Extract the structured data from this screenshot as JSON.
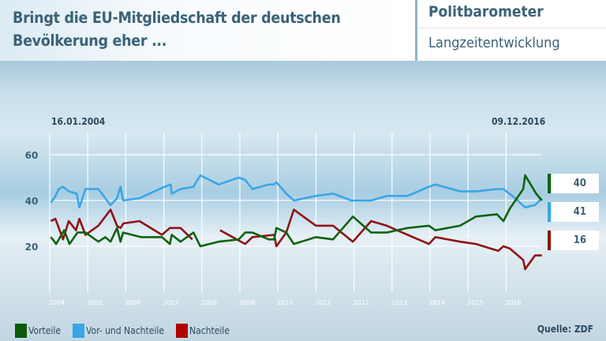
{
  "header": {
    "title_line1": "Bringt die EU-Mitgliedschaft der deutschen",
    "title_line2": "Bevölkerung eher ...",
    "brand": "Politbarometer",
    "subtitle": "Langzeitentwicklung"
  },
  "source": "Quelle: ZDF",
  "chart_data": {
    "type": "line",
    "start_label": "16.01.2004",
    "end_label": "09.12.2016",
    "xlim": [
      2004,
      2017
    ],
    "ylim": [
      0,
      70
    ],
    "x_ticks": [
      "2004",
      "2005",
      "2006",
      "2007",
      "2008",
      "2009",
      "2010",
      "2011",
      "2012",
      "2013",
      "2014",
      "2015",
      "2016"
    ],
    "y_ticks": [
      "20",
      "40",
      "60"
    ],
    "grid": true,
    "legend": "bottom-left",
    "series": [
      {
        "name": "Vorteile",
        "color": "#0f6310",
        "last_value": "40",
        "points": [
          [
            2004.03,
            24
          ],
          [
            2004.1,
            22.6
          ],
          [
            2004.17,
            21
          ],
          [
            2004.38,
            27
          ],
          [
            2004.52,
            21
          ],
          [
            2004.73,
            26
          ],
          [
            2004.94,
            26
          ],
          [
            2005.28,
            22
          ],
          [
            2005.46,
            24
          ],
          [
            2005.6,
            22
          ],
          [
            2005.77,
            28
          ],
          [
            2005.86,
            22
          ],
          [
            2005.93,
            26
          ],
          [
            2006.4,
            24
          ],
          [
            2006.95,
            24
          ],
          [
            2007.16,
            21
          ],
          [
            2007.21,
            25
          ],
          [
            2007.44,
            22
          ],
          [
            2007.78,
            26
          ],
          [
            2007.96,
            20
          ],
          [
            2008.44,
            22
          ],
          [
            2008.97,
            23
          ],
          [
            2009.14,
            26
          ],
          [
            2009.33,
            26
          ],
          [
            2009.76,
            23
          ],
          [
            2009.9,
            23
          ],
          [
            2009.96,
            28
          ],
          [
            2010.22,
            26
          ],
          [
            2010.42,
            21
          ],
          [
            2011.0,
            24
          ],
          [
            2011.45,
            23
          ],
          [
            2011.97,
            33
          ],
          [
            2012.45,
            26
          ],
          [
            2012.86,
            26
          ],
          [
            2013.41,
            28
          ],
          [
            2013.97,
            29
          ],
          [
            2014.14,
            27
          ],
          [
            2014.79,
            29
          ],
          [
            2015.21,
            33
          ],
          [
            2015.76,
            34
          ],
          [
            2015.93,
            31
          ],
          [
            2016.1,
            36.5
          ],
          [
            2016.45,
            45
          ],
          [
            2016.5,
            51
          ],
          [
            2016.79,
            43
          ],
          [
            2016.94,
            40
          ]
        ]
      },
      {
        "name": "Vor- und Nachteile",
        "color": "#3aa6e6",
        "last_value": "41",
        "points": [
          [
            2004.03,
            39
          ],
          [
            2004.14,
            41.6
          ],
          [
            2004.24,
            45
          ],
          [
            2004.35,
            46
          ],
          [
            2004.5,
            44
          ],
          [
            2004.71,
            43
          ],
          [
            2004.78,
            37
          ],
          [
            2004.94,
            45
          ],
          [
            2005.28,
            45
          ],
          [
            2005.6,
            38
          ],
          [
            2005.77,
            41
          ],
          [
            2005.86,
            46
          ],
          [
            2005.93,
            40
          ],
          [
            2006.36,
            41
          ],
          [
            2007.02,
            46
          ],
          [
            2007.18,
            47
          ],
          [
            2007.21,
            43
          ],
          [
            2007.44,
            45
          ],
          [
            2007.78,
            46
          ],
          [
            2007.96,
            51
          ],
          [
            2008.44,
            47
          ],
          [
            2008.97,
            50
          ],
          [
            2009.14,
            49
          ],
          [
            2009.33,
            45
          ],
          [
            2009.76,
            47
          ],
          [
            2009.9,
            47
          ],
          [
            2009.96,
            48
          ],
          [
            2010.22,
            43
          ],
          [
            2010.42,
            40
          ],
          [
            2011.0,
            42
          ],
          [
            2011.45,
            43
          ],
          [
            2011.93,
            40
          ],
          [
            2012.45,
            40
          ],
          [
            2012.86,
            42
          ],
          [
            2013.41,
            42
          ],
          [
            2013.97,
            46
          ],
          [
            2014.14,
            47
          ],
          [
            2014.79,
            44
          ],
          [
            2015.21,
            44
          ],
          [
            2015.76,
            45
          ],
          [
            2015.93,
            45
          ],
          [
            2016.24,
            41
          ],
          [
            2016.5,
            37
          ],
          [
            2016.76,
            38
          ],
          [
            2016.94,
            41
          ]
        ]
      },
      {
        "name": "Nachteile",
        "color": "#8e1414",
        "last_value": "16",
        "points": [
          [
            2004.03,
            31
          ],
          [
            2004.15,
            32
          ],
          [
            2004.35,
            23
          ],
          [
            2004.5,
            31
          ],
          [
            2004.69,
            27
          ],
          [
            2004.78,
            32
          ],
          [
            2004.94,
            25
          ],
          [
            2005.28,
            29
          ],
          [
            2005.6,
            36
          ],
          [
            2005.77,
            29
          ],
          [
            2005.86,
            28
          ],
          [
            2005.94,
            30
          ],
          [
            2006.36,
            31
          ],
          [
            2006.95,
            25
          ],
          [
            2007.16,
            28
          ],
          [
            2007.44,
            28
          ],
          [
            2007.75,
            23
          ],
          null,
          [
            2008.48,
            27
          ],
          [
            2009.14,
            21
          ],
          [
            2009.33,
            24
          ],
          [
            2009.9,
            25
          ],
          [
            2009.96,
            20
          ],
          [
            2010.22,
            26
          ],
          [
            2010.42,
            36
          ],
          [
            2011.0,
            29
          ],
          [
            2011.45,
            29
          ],
          [
            2011.97,
            22
          ],
          [
            2012.45,
            31
          ],
          [
            2012.86,
            29
          ],
          [
            2013.41,
            25
          ],
          [
            2013.97,
            21
          ],
          [
            2014.14,
            24
          ],
          [
            2014.79,
            22
          ],
          [
            2015.21,
            21
          ],
          [
            2015.79,
            18
          ],
          [
            2015.93,
            20
          ],
          [
            2016.1,
            19
          ],
          [
            2016.45,
            14
          ],
          [
            2016.5,
            10
          ],
          [
            2016.76,
            16
          ],
          [
            2016.94,
            16
          ]
        ]
      }
    ]
  }
}
